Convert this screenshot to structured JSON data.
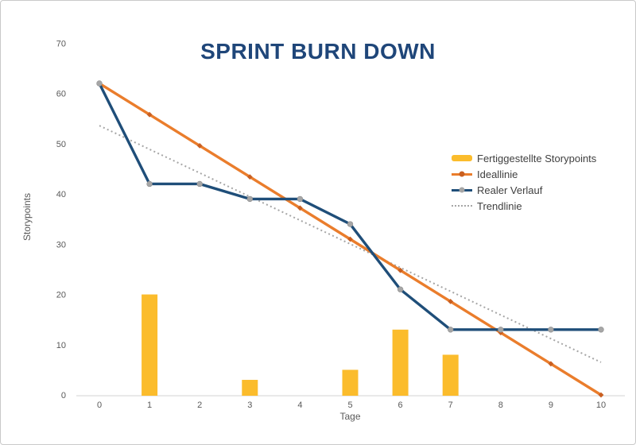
{
  "chart_data": {
    "type": "combo",
    "title": "SPRINT BURN DOWN",
    "title_color": "#1F4679",
    "xlabel": "Tage",
    "ylabel": "Storypoints",
    "x": [
      0,
      1,
      2,
      3,
      4,
      5,
      6,
      7,
      8,
      9,
      10
    ],
    "xlim": [
      0,
      10
    ],
    "ylim": [
      0,
      70
    ],
    "yticks": [
      0,
      10,
      20,
      30,
      40,
      50,
      60,
      70
    ],
    "grid": false,
    "legend_position": "right",
    "series": [
      {
        "name": "Fertiggestellte Storypoints",
        "type": "bar",
        "color": "#FBBC2C",
        "values": [
          null,
          20,
          null,
          3,
          null,
          5,
          13,
          8,
          null,
          null,
          null
        ]
      },
      {
        "name": "Ideallinie",
        "type": "line",
        "color": "#EA7D2C",
        "marker": "diamond",
        "marker_color": "#C95F20",
        "values": [
          62,
          55.8,
          49.6,
          43.4,
          37.2,
          31,
          24.8,
          18.6,
          12.4,
          6.2,
          0
        ]
      },
      {
        "name": "Realer Verlauf",
        "type": "line",
        "color": "#1F4E79",
        "marker": "circle",
        "marker_color": "#A6A6A6",
        "values": [
          62,
          42,
          42,
          39,
          39,
          34,
          21,
          13,
          13,
          13,
          13
        ]
      },
      {
        "name": "Trendlinie",
        "type": "dotted-line",
        "color": "#A6A6A6",
        "x": [
          0,
          10
        ],
        "values": [
          53.6,
          6.5
        ]
      }
    ]
  }
}
